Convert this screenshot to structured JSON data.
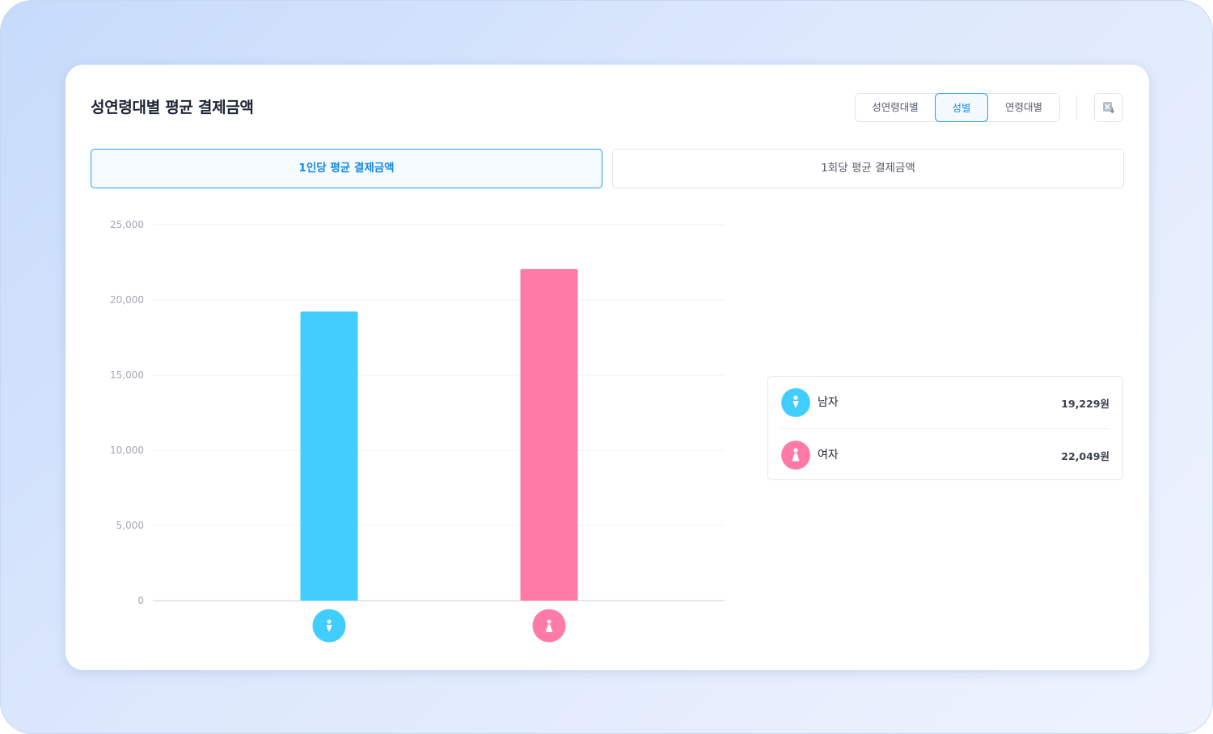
{
  "card": {
    "title": "성연령대별 평균 결제금액"
  },
  "segments": {
    "items": [
      "성연령대별",
      "성별",
      "연령대별"
    ],
    "selected": "성별"
  },
  "export_icon": "excel-download-icon",
  "tabs": {
    "items": [
      "1인당 평균 결제금액",
      "1회당 평균 결제금액"
    ],
    "active": "1인당 평균 결제금액"
  },
  "colors": {
    "male": "#42cdff",
    "female": "#ff7aa7",
    "accent": "#2b9bf2"
  },
  "chart_data": {
    "type": "bar",
    "title": "",
    "xlabel": "",
    "ylabel": "",
    "categories": [
      "남자",
      "여자"
    ],
    "category_icons": [
      "male-icon",
      "female-icon"
    ],
    "values": [
      19229,
      22049
    ],
    "ylim": [
      0,
      25000
    ],
    "yticks": [
      "25,000",
      "20,000",
      "15,000",
      "10,000",
      "5,000",
      "0"
    ],
    "ytick_values": [
      25000,
      20000,
      15000,
      10000,
      5000,
      0
    ],
    "grid": true,
    "legend": "right"
  },
  "legend": {
    "items": [
      {
        "label": "남자",
        "value": "19,229원",
        "icon": "male-icon"
      },
      {
        "label": "여자",
        "value": "22,049원",
        "icon": "female-icon"
      }
    ]
  }
}
